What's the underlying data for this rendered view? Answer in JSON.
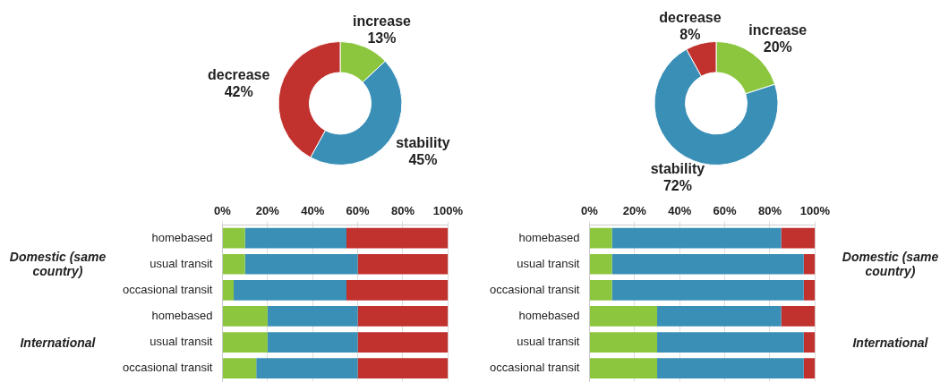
{
  "chart_data": [
    {
      "type": "donut",
      "categories": [
        "increase",
        "stability",
        "decrease"
      ],
      "values": [
        13,
        45,
        42
      ],
      "value_labels": [
        "13%",
        "45%",
        "42%"
      ],
      "colors": [
        "#8cc63f",
        "#3a8fb7",
        "#c1312e"
      ],
      "legend": false
    },
    {
      "type": "donut",
      "categories": [
        "increase",
        "stability",
        "decrease"
      ],
      "values": [
        20,
        72,
        8
      ],
      "value_labels": [
        "20%",
        "72%",
        "8%"
      ],
      "colors": [
        "#8cc63f",
        "#3a8fb7",
        "#c1312e"
      ],
      "legend": false
    },
    {
      "type": "bar",
      "orientation": "horizontal",
      "stacked": true,
      "categories": [
        "homebased",
        "usual transit",
        "occasional transit",
        "homebased",
        "usual transit",
        "occasional transit"
      ],
      "series": [
        {
          "color": "#8cc63f",
          "values": [
            10,
            10,
            5,
            20,
            20,
            15
          ]
        },
        {
          "color": "#3a8fb7",
          "values": [
            45,
            50,
            50,
            40,
            40,
            45
          ]
        },
        {
          "color": "#c1312e",
          "values": [
            45,
            40,
            45,
            40,
            40,
            40
          ]
        }
      ],
      "xlim": [
        0,
        100
      ],
      "xticks": [
        {
          "value": 0,
          "label": "0%"
        },
        {
          "value": 20,
          "label": "20%"
        },
        {
          "value": 40,
          "label": "40%"
        },
        {
          "value": 60,
          "label": "60%"
        },
        {
          "value": 80,
          "label": "80%"
        },
        {
          "value": 100,
          "label": "100%"
        }
      ],
      "grid": "x",
      "legend": false,
      "annotations": [
        "Domestic (same country)",
        "International"
      ]
    },
    {
      "type": "bar",
      "orientation": "horizontal",
      "stacked": true,
      "categories": [
        "homebased",
        "usual transit",
        "occasional transit",
        "homebased",
        "usual transit",
        "occasional transit"
      ],
      "series": [
        {
          "color": "#8cc63f",
          "values": [
            10,
            10,
            10,
            30,
            30,
            30
          ]
        },
        {
          "color": "#3a8fb7",
          "values": [
            75,
            85,
            85,
            55,
            65,
            65
          ]
        },
        {
          "color": "#c1312e",
          "values": [
            15,
            5,
            5,
            15,
            5,
            5
          ]
        }
      ],
      "xlim": [
        0,
        100
      ],
      "xticks": [
        {
          "value": 0,
          "label": "0%"
        },
        {
          "value": 20,
          "label": "20%"
        },
        {
          "value": 40,
          "label": "40%"
        },
        {
          "value": 60,
          "label": "60%"
        },
        {
          "value": 80,
          "label": "80%"
        },
        {
          "value": 100,
          "label": "100%"
        }
      ],
      "grid": "x",
      "legend": false,
      "annotations": [
        "Domestic (same country)",
        "International"
      ]
    }
  ]
}
